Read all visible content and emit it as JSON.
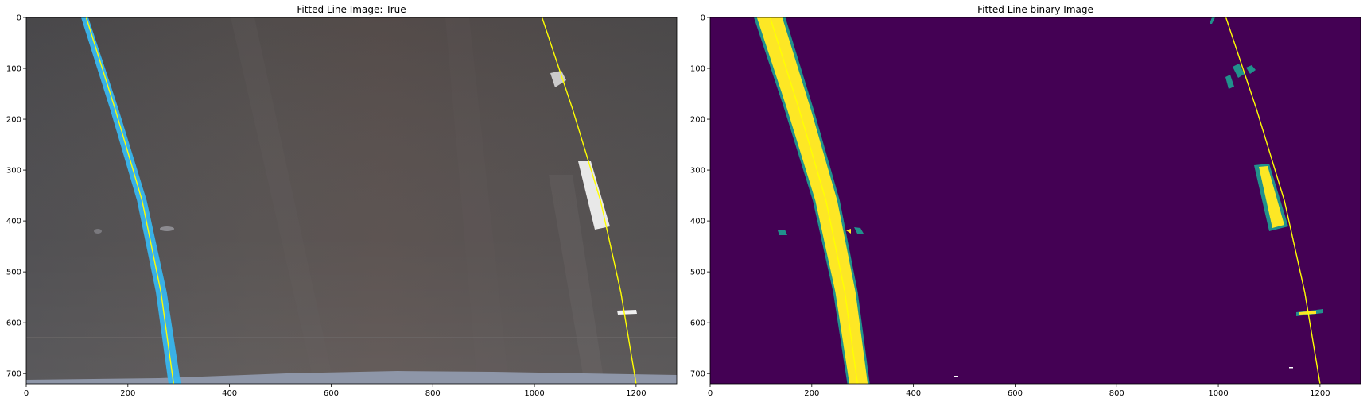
{
  "chart_data": [
    {
      "type": "image",
      "title": "Fitted Line Image: True",
      "xlim": [
        0,
        1280
      ],
      "ylim": [
        720,
        0
      ],
      "x_ticks": [
        0,
        200,
        400,
        600,
        800,
        1000,
        1200
      ],
      "y_ticks": [
        0,
        100,
        200,
        300,
        400,
        500,
        600,
        700
      ],
      "colors": {
        "fitted_line": "#ffff00",
        "lane_left": "#38b6ee",
        "road": "#5b5654"
      },
      "series": [
        {
          "x": [
            118,
            175,
            228,
            265,
            290
          ],
          "y": [
            0,
            180,
            360,
            540,
            720
          ]
        },
        {
          "x": [
            1015,
            1075,
            1130,
            1170,
            1200
          ],
          "y": [
            0,
            180,
            360,
            540,
            720
          ]
        }
      ]
    },
    {
      "type": "image",
      "title": "Fitted Line binary Image",
      "xlim": [
        0,
        1280
      ],
      "ylim": [
        720,
        0
      ],
      "x_ticks": [
        0,
        200,
        400,
        600,
        800,
        1000,
        1200
      ],
      "y_ticks": [
        0,
        100,
        200,
        300,
        400,
        500,
        600,
        700
      ],
      "colors": {
        "fitted_line": "#ffff00",
        "background": "#440154",
        "lane": "#fde725",
        "edge": "#21918c"
      },
      "series": [
        {
          "x": [
            118,
            175,
            228,
            265,
            290
          ],
          "y": [
            0,
            180,
            360,
            540,
            720
          ]
        },
        {
          "x": [
            1015,
            1075,
            1130,
            1170,
            1200
          ],
          "y": [
            0,
            180,
            360,
            540,
            720
          ]
        }
      ]
    }
  ]
}
